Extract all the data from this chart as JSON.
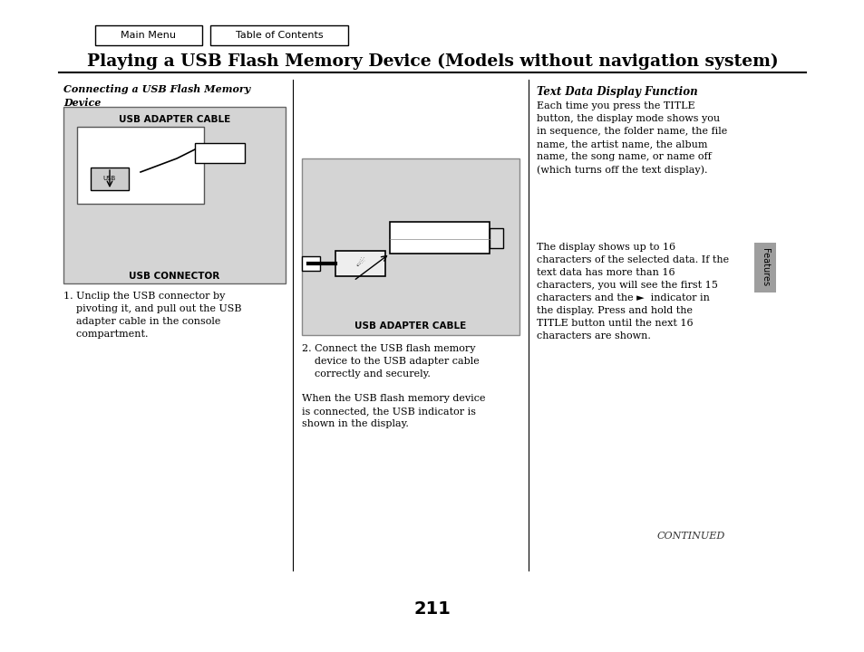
{
  "bg_color": "#ffffff",
  "title": "Playing a USB Flash Memory Device (Models without navigation system)",
  "title_fontsize": 13.5,
  "btn1_label": "Main Menu",
  "btn2_label": "Table of Contents",
  "section1_title": "Connecting a USB Flash Memory\nDevice",
  "img1_label_top": "USB ADAPTER CABLE",
  "img1_label_bottom": "USB CONNECTOR",
  "img2_label": "USB ADAPTER CABLE",
  "step1_text": "1. Unclip the USB connector by\n    pivoting it, and pull out the USB\n    adapter cable in the console\n    compartment.",
  "step2_text": "2. Connect the USB flash memory\n    device to the USB adapter cable\n    correctly and securely.",
  "when_text": "When the USB flash memory device\nis connected, the USB indicator is\nshown in the display.",
  "right_title": "Text Data Display Function",
  "right_body": "Each time you press the TITLE\nbutton, the display mode shows you\nin sequence, the folder name, the file\nname, the artist name, the album\nname, the song name, or name off\n(which turns off the text display).",
  "right_body2": "The display shows up to 16\ncharacters of the selected data. If the\ntext data has more than 16\ncharacters, you will see the first 15\ncharacters and the ►  indicator in\nthe display. Press and hold the\nTITLE button until the next 16\ncharacters are shown.",
  "continued_text": "CONTINUED",
  "page_number": "211",
  "features_text": "Features",
  "tab_color": "#9e9e9e",
  "img_bg": "#d4d4d4",
  "divider_color": "#000000",
  "rule_color": "#000000"
}
